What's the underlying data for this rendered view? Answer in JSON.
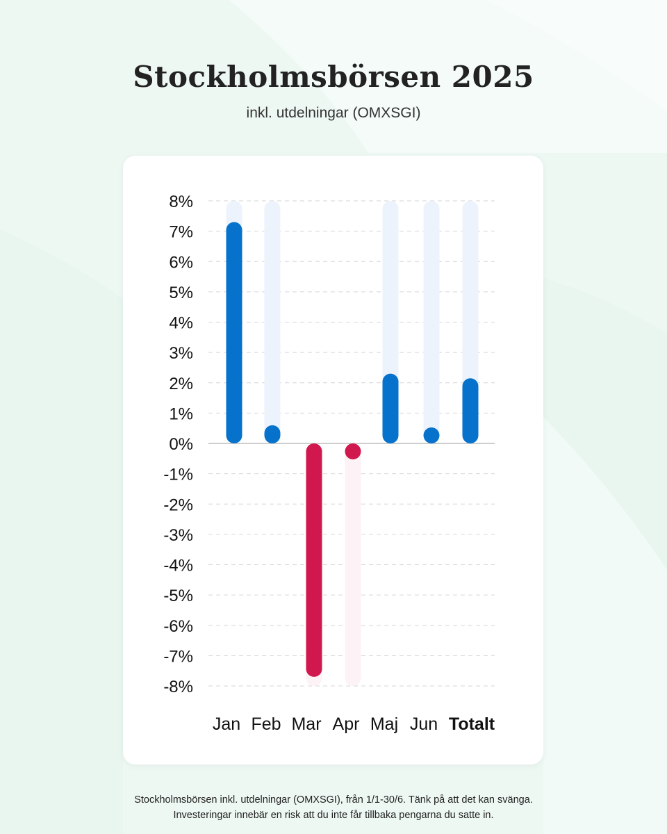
{
  "header": {
    "title": "Stockholmsbörsen 2025",
    "subtitle": "inkl. utdelningar (OMXSGI)"
  },
  "footnote": {
    "line1": "Stockholmsbörsen inkl. utdelningar (OMXSGI), från 1/1-30/6. Tänk på att det kan svänga.",
    "line2": "Investeringar innebär en risk att du inte får tillbaka pengarna du satte in."
  },
  "colors": {
    "positive": "#0672cc",
    "positive_track": "#edf3fc",
    "negative": "#d0184e",
    "negative_track": "#fdf2f5",
    "grid": "#d6d6d6",
    "zero_line": "#bdbdbd",
    "text": "#111111"
  },
  "chart_data": {
    "type": "bar",
    "title": "Stockholmsbörsen 2025",
    "subtitle": "inkl. utdelningar (OMXSGI)",
    "categories": [
      "Jan",
      "Feb",
      "Mar",
      "Apr",
      "Maj",
      "Jun",
      "Totalt"
    ],
    "values": [
      7.3,
      0.6,
      -7.7,
      -0.3,
      2.3,
      0.45,
      2.15
    ],
    "unit": "%",
    "ylim": [
      -8,
      8
    ],
    "yticks": [
      "8%",
      "7%",
      "6%",
      "5%",
      "4%",
      "3%",
      "2%",
      "1%",
      "0%",
      "-1%",
      "-2%",
      "-3%",
      "-4%",
      "-5%",
      "-6%",
      "-7%",
      "-8%"
    ],
    "ytick_values": [
      8,
      7,
      6,
      5,
      4,
      3,
      2,
      1,
      0,
      -1,
      -2,
      -3,
      -4,
      -5,
      -6,
      -7,
      -8
    ],
    "grid": true,
    "emphasized_category": "Totalt",
    "xlabel": "",
    "ylabel": ""
  }
}
